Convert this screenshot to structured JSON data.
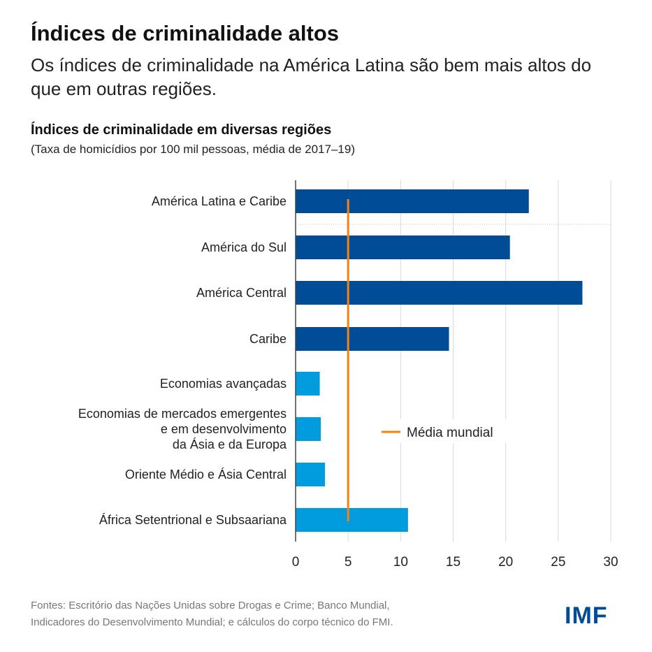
{
  "header": {
    "title": "Índices de criminalidade altos",
    "subtitle": "Os índices de criminalidade na América Latina são bem mais altos do que em outras regiões."
  },
  "footer": {
    "source_line1": "Fontes: Escritório das Nações Unidas sobre Drogas e Crime; Banco Mundial,",
    "source_line2": "Indicadores do Desenvolvimento Mundial; e cálculos do corpo técnico do FMI.",
    "logo": "IMF"
  },
  "chart_data": {
    "type": "bar",
    "orientation": "horizontal",
    "title": "Índices de criminalidade em diversas regiões",
    "subtitle": "(Taxa de homicídios por 100 mil pessoas, média de 2017–19)",
    "categories": [
      [
        "América Latina e Caribe"
      ],
      [
        "América do Sul"
      ],
      [
        "América Central"
      ],
      [
        "Caribe"
      ],
      [
        "Economias avançadas"
      ],
      [
        "Economias de mercados emergentes",
        "e em desenvolvimento",
        "da Ásia e da Europa"
      ],
      [
        "Oriente Médio e Ásia Central"
      ],
      [
        "África Setentrional e Subsaariana"
      ]
    ],
    "values": [
      22.2,
      20.4,
      27.3,
      14.6,
      2.3,
      2.4,
      2.8,
      10.7
    ],
    "bar_colors": [
      "#004C97",
      "#004C97",
      "#004C97",
      "#004C97",
      "#009CDE",
      "#009CDE",
      "#009CDE",
      "#009CDE"
    ],
    "reference_line": {
      "label": "Média mundial",
      "value": 5.0,
      "color": "#F7820F"
    },
    "xlim": [
      0,
      30
    ],
    "xticks": [
      0,
      5,
      10,
      15,
      20,
      25,
      30
    ],
    "grid": true,
    "legend_position": "center-right"
  }
}
